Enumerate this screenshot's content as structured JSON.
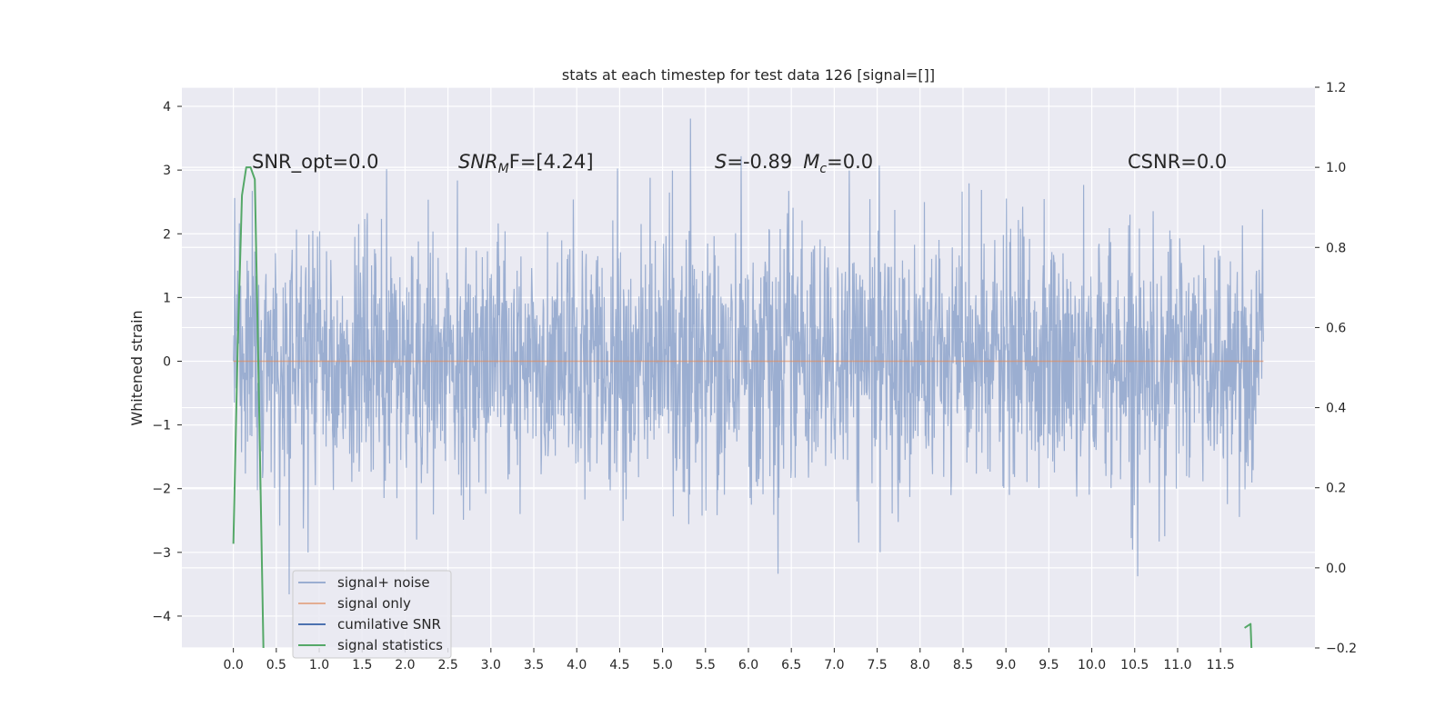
{
  "chart_data": {
    "type": "line",
    "title": "stats at each timestep for test data 126 [signal=[]]",
    "ylabel": "Whitened strain",
    "xlabel": "",
    "xlim": [
      -0.6,
      12.6
    ],
    "ylim": [
      -4.5,
      4.3
    ],
    "y2lim": [
      -0.2,
      1.2
    ],
    "x_ticks": [
      "0.0",
      "0.5",
      "1.0",
      "1.5",
      "2.0",
      "2.5",
      "3.0",
      "3.5",
      "4.0",
      "4.5",
      "5.0",
      "5.5",
      "6.0",
      "6.5",
      "7.0",
      "7.5",
      "8.0",
      "8.5",
      "9.0",
      "9.5",
      "10.0",
      "10.5",
      "11.0",
      "11.5"
    ],
    "y_ticks": [
      "4",
      "3",
      "2",
      "1",
      "0",
      "−1",
      "−2",
      "−3",
      "−4"
    ],
    "y2_ticks": [
      "1.2",
      "1.0",
      "0.8",
      "0.6",
      "0.4",
      "0.2",
      "0.0",
      "−0.2"
    ],
    "grid": true,
    "legend_position": "lower-left",
    "colors": {
      "background": "#eaeaf2",
      "grid": "#ffffff",
      "signal_noise": "#4c72b0",
      "signal_only": "#dd8452",
      "cumulative_snr": "#4c72b0",
      "signal_statistics": "#55a868"
    },
    "series": [
      {
        "name": "signal+ noise",
        "description": "whitened strain noise time series, 0 to 12 s, values approximately within [-3.9, 3.9]",
        "x_range": [
          0.0,
          12.0
        ],
        "y_envelope": {
          "typical_max": 2.0,
          "typical_min": -2.0,
          "peak_max": 3.9,
          "peak_min": -3.9
        }
      },
      {
        "name": "signal only",
        "x": [
          0.0,
          12.0
        ],
        "y": [
          0.0,
          0.0
        ]
      },
      {
        "name": "cumilative SNR",
        "x": [],
        "y": []
      },
      {
        "name": "signal statistics",
        "axis": "right",
        "x": [
          0.0,
          0.05,
          0.1,
          0.15,
          0.2,
          0.25,
          0.3,
          0.35,
          0.4,
          11.78,
          11.85,
          11.86
        ],
        "y": [
          0.06,
          0.55,
          0.93,
          1.0,
          1.0,
          0.97,
          0.4,
          -0.2,
          null,
          -0.15,
          -0.14,
          -0.2
        ]
      }
    ],
    "annotations": [
      {
        "id": "snr_opt",
        "text": "SNR_opt=0.0"
      },
      {
        "id": "snr_mf_name",
        "text": "SNR"
      },
      {
        "id": "snr_mf_sub",
        "text": "M"
      },
      {
        "id": "snr_mf_rest",
        "text": "F=[4.24]"
      },
      {
        "id": "s_name",
        "text": "S"
      },
      {
        "id": "s_value",
        "text": "=-0.89"
      },
      {
        "id": "mc_name",
        "text": "M"
      },
      {
        "id": "mc_sub",
        "text": "c"
      },
      {
        "id": "mc_value",
        "text": "=0.0"
      },
      {
        "id": "csnr",
        "text": "CSNR=0.0"
      }
    ],
    "legend": [
      "signal+ noise",
      "signal only",
      "cumilative SNR",
      "signal statistics"
    ]
  }
}
